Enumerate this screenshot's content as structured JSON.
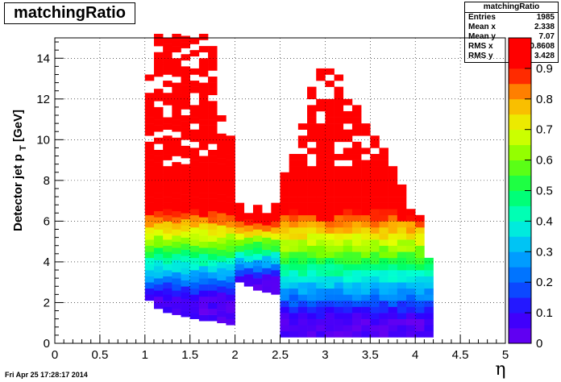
{
  "header": {
    "title": "matchingRatio"
  },
  "stats": {
    "title": "matchingRatio",
    "rows": [
      {
        "label": "Entries",
        "value": "1985"
      },
      {
        "label": "Mean x",
        "value": "2.338"
      },
      {
        "label": "Mean y",
        "value": "7.07"
      },
      {
        "label": "RMS x",
        "value": "0.8608"
      },
      {
        "label": "RMS y",
        "value": "3.428"
      }
    ]
  },
  "footer": {
    "timestamp": "Fri Apr 25 17:28:17 2014"
  },
  "chart_data": {
    "type": "heatmap",
    "title": "matchingRatio",
    "xlabel": "η",
    "ylabel": "Detector jet p_T [GeV]",
    "xlim": [
      0,
      5
    ],
    "ylim": [
      0,
      15
    ],
    "zlim": [
      0,
      1
    ],
    "x_ticks": [
      "0",
      "0.5",
      "1",
      "1.5",
      "2",
      "2.5",
      "3",
      "3.5",
      "4",
      "4.5",
      "5"
    ],
    "y_ticks": [
      "0",
      "2",
      "4",
      "6",
      "8",
      "10",
      "12",
      "14"
    ],
    "z_ticks": [
      "0",
      "0.1",
      "0.2",
      "0.3",
      "0.4",
      "0.5",
      "0.6",
      "0.7",
      "0.8",
      "0.9"
    ],
    "grid": true,
    "bin_width_x": 0.1,
    "bin_width_y": 0.3,
    "regions": [
      {
        "x": [
          1.0,
          2.0
        ],
        "ymin": 1.5,
        "ymax": 15.0,
        "ymin_edge": [
          2.1,
          1.7,
          1.5,
          1.4,
          1.3,
          1.2,
          1.1,
          1.1,
          1.0,
          0.9
        ],
        "ymax_edge": [
          13.2,
          15.0,
          15.0,
          15.0,
          15.0,
          15.0,
          15.0,
          14.5,
          11.0,
          10.0
        ],
        "ramp": [
          2.0,
          6.5
        ]
      },
      {
        "x": [
          2.0,
          2.5
        ],
        "ymin": 1.5,
        "ymax": 7.0,
        "ymin_edge": [
          3.0,
          2.8,
          2.6,
          2.5,
          2.4
        ],
        "ymax_edge": [
          6.8,
          6.3,
          6.6,
          6.2,
          6.8
        ],
        "ramp": [
          3.0,
          6.0
        ]
      },
      {
        "x": [
          2.5,
          4.2
        ],
        "ymin": 0.3,
        "ymax": 13.5,
        "ymin_edge": [
          0.3,
          0.3,
          0.3,
          0.3,
          0.3,
          0.3,
          0.3,
          0.3,
          0.3,
          0.3,
          0.3,
          0.3,
          0.3,
          0.3,
          0.3,
          0.3,
          0.3
        ],
        "ymax_edge": [
          8.2,
          9.3,
          10.7,
          12.5,
          13.3,
          13.5,
          13.0,
          12.3,
          11.5,
          11.0,
          10.0,
          9.5,
          8.5,
          7.8,
          6.6,
          6.3,
          4.2
        ],
        "ramp": [
          1.0,
          6.5
        ]
      }
    ]
  }
}
